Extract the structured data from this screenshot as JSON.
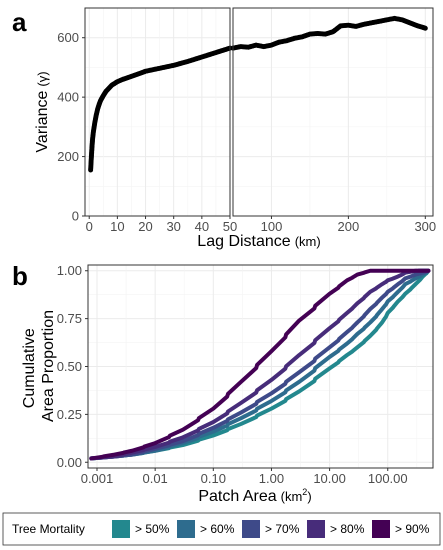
{
  "chart_data": [
    {
      "panel_label": "a",
      "type": "scatter",
      "layout": "split x-axis (two facets)",
      "ylabel": "Variance",
      "ylabel_symbol": "(γ)",
      "xlabel": "Lag Distance",
      "xlabel_unit": "(km)",
      "ylim": [
        0,
        700
      ],
      "yticks": [
        0,
        200,
        400,
        600
      ],
      "ytick_labels": [
        "0",
        "200",
        "400",
        "600"
      ],
      "grid": true,
      "point_color": "#000000",
      "facets": [
        {
          "xlim": [
            -1.5,
            50
          ],
          "xticks": [
            0,
            10,
            20,
            30,
            40,
            50
          ],
          "xtick_labels": [
            "0",
            "10",
            "20",
            "30",
            "40",
            "50"
          ],
          "curve": [
            [
              0.5,
              155
            ],
            [
              0.8,
              205
            ],
            [
              1,
              235
            ],
            [
              1.2,
              260
            ],
            [
              1.5,
              285
            ],
            [
              2,
              315
            ],
            [
              2.5,
              340
            ],
            [
              3,
              360
            ],
            [
              3.5,
              375
            ],
            [
              4,
              388
            ],
            [
              5,
              405
            ],
            [
              6,
              420
            ],
            [
              7,
              430
            ],
            [
              8,
              440
            ],
            [
              10,
              452
            ],
            [
              12,
              460
            ],
            [
              15,
              470
            ],
            [
              18,
              480
            ],
            [
              20,
              487
            ],
            [
              25,
              497
            ],
            [
              30,
              507
            ],
            [
              35,
              520
            ],
            [
              40,
              535
            ],
            [
              45,
              550
            ],
            [
              50,
              565
            ]
          ]
        },
        {
          "xlim": [
            50,
            310
          ],
          "xticks": [
            100,
            200,
            300
          ],
          "xtick_labels": [
            "100",
            "200",
            "300"
          ],
          "curve": [
            [
              50,
              565
            ],
            [
              60,
              570
            ],
            [
              70,
              568
            ],
            [
              80,
              575
            ],
            [
              90,
              570
            ],
            [
              100,
              575
            ],
            [
              110,
              585
            ],
            [
              120,
              590
            ],
            [
              130,
              598
            ],
            [
              140,
              603
            ],
            [
              150,
              612
            ],
            [
              160,
              614
            ],
            [
              170,
              612
            ],
            [
              180,
              620
            ],
            [
              190,
              640
            ],
            [
              200,
              642
            ],
            [
              210,
              638
            ],
            [
              220,
              645
            ],
            [
              230,
              650
            ],
            [
              240,
              655
            ],
            [
              250,
              660
            ],
            [
              260,
              665
            ],
            [
              270,
              660
            ],
            [
              280,
              650
            ],
            [
              290,
              640
            ],
            [
              300,
              632
            ]
          ]
        }
      ]
    },
    {
      "panel_label": "b",
      "type": "line",
      "x_scale": "log",
      "xlabel": "Patch Area",
      "xlabel_unit": "(km",
      "xlabel_unit_superscript": "2",
      "xlabel_unit_end": ")",
      "ylabel_lines": [
        "Cumulative",
        "Area Proportion"
      ],
      "xlim": [
        0.0007,
        600
      ],
      "ylim": [
        -0.03,
        1.03
      ],
      "xticks": [
        0.001,
        0.01,
        0.1,
        1,
        10,
        100
      ],
      "xtick_labels": [
        "0.001",
        "0.01",
        "0.10",
        "1.00",
        "10.00",
        "100.00"
      ],
      "yticks": [
        0,
        0.25,
        0.5,
        0.75,
        1
      ],
      "ytick_labels": [
        "0.00",
        "0.25",
        "0.50",
        "0.75",
        "1.00"
      ],
      "grid": true,
      "legend_title": "Tree Mortality",
      "legend_position": "bottom",
      "series": [
        {
          "name": "> 50%",
          "color": "#23888e",
          "x": [
            0.0008,
            0.002,
            0.004,
            0.01,
            0.03,
            0.1,
            0.3,
            1,
            3,
            10,
            20,
            30,
            50,
            80,
            100,
            150,
            200,
            300,
            400,
            500
          ],
          "y": [
            0.02,
            0.03,
            0.04,
            0.06,
            0.09,
            0.14,
            0.2,
            0.28,
            0.37,
            0.49,
            0.56,
            0.6,
            0.66,
            0.73,
            0.78,
            0.84,
            0.88,
            0.93,
            0.97,
            1.0
          ]
        },
        {
          "name": "> 60%",
          "color": "#2e6c8e",
          "x": [
            0.0008,
            0.002,
            0.004,
            0.01,
            0.03,
            0.1,
            0.3,
            1,
            3,
            10,
            20,
            30,
            50,
            80,
            100,
            150,
            200,
            300,
            400,
            500
          ],
          "y": [
            0.02,
            0.03,
            0.04,
            0.06,
            0.1,
            0.16,
            0.23,
            0.32,
            0.42,
            0.55,
            0.62,
            0.67,
            0.73,
            0.8,
            0.84,
            0.89,
            0.93,
            0.96,
            0.98,
            1.0
          ]
        },
        {
          "name": "> 70%",
          "color": "#3e4a89",
          "x": [
            0.0008,
            0.002,
            0.004,
            0.01,
            0.03,
            0.1,
            0.3,
            1,
            3,
            10,
            20,
            30,
            50,
            80,
            100,
            150,
            200,
            300,
            400,
            500
          ],
          "y": [
            0.02,
            0.03,
            0.04,
            0.07,
            0.11,
            0.18,
            0.26,
            0.36,
            0.47,
            0.6,
            0.68,
            0.73,
            0.8,
            0.86,
            0.89,
            0.93,
            0.96,
            0.98,
            0.99,
            1.0
          ]
        },
        {
          "name": "> 80%",
          "color": "#472c7a",
          "x": [
            0.0008,
            0.002,
            0.004,
            0.01,
            0.03,
            0.1,
            0.3,
            1,
            3,
            10,
            20,
            30,
            50,
            80,
            100,
            150,
            200,
            300,
            400,
            500
          ],
          "y": [
            0.02,
            0.03,
            0.05,
            0.08,
            0.13,
            0.21,
            0.31,
            0.43,
            0.56,
            0.7,
            0.78,
            0.83,
            0.89,
            0.93,
            0.95,
            0.97,
            0.99,
            1.0,
            1.0,
            1.0
          ]
        },
        {
          "name": "> 90%",
          "color": "#440154",
          "x": [
            0.0008,
            0.002,
            0.004,
            0.01,
            0.03,
            0.1,
            0.3,
            1,
            3,
            10,
            20,
            30,
            50,
            80,
            100,
            150,
            200,
            300,
            400,
            500
          ],
          "y": [
            0.02,
            0.04,
            0.06,
            0.1,
            0.17,
            0.28,
            0.42,
            0.58,
            0.74,
            0.88,
            0.95,
            0.98,
            1.0,
            1.0,
            1.0,
            1.0,
            1.0,
            1.0,
            1.0,
            1.0
          ]
        }
      ]
    }
  ]
}
